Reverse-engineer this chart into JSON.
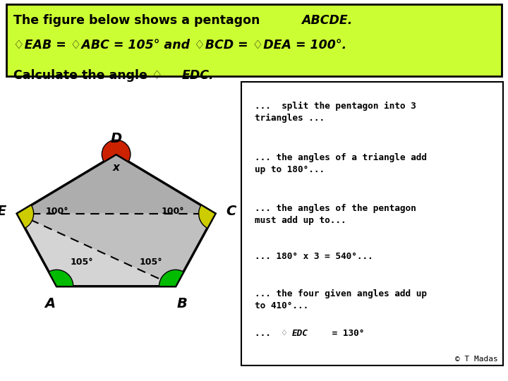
{
  "header_bg": "#CCFF33",
  "pentagon_fill_light": "#D0D0D0",
  "pentagon_fill_mid": "#B8B8B8",
  "pentagon_fill_dark": "#A8A8A8",
  "angle_D_color": "#CC2200",
  "angle_E_color": "#CCCC00",
  "angle_C_color": "#CCCC00",
  "angle_A_color": "#00BB00",
  "angle_B_color": "#00BB00",
  "copyright": "© T Madas",
  "A": [
    1.8,
    1.5
  ],
  "B": [
    7.2,
    1.5
  ],
  "C": [
    9.0,
    4.8
  ],
  "D": [
    4.5,
    7.5
  ],
  "E": [
    0.0,
    4.8
  ],
  "header_lines": [
    [
      "The figure below shows a pentagon ",
      false,
      "ABCDE.",
      true
    ],
    [
      "♢EAB = ♢ABC = 105° and ♢BCD = ♢DEA = 100°.",
      true,
      "",
      false
    ],
    [
      "Calculate the angle ♢",
      false,
      "EDC.",
      true
    ]
  ],
  "right_lines": [
    [
      "...  split the pentagon into 3",
      "triangles ..."
    ],
    [
      "... the angles of a triangle add",
      "up to 180°..."
    ],
    [
      "... the angles of the pentagon",
      "must add up to..."
    ],
    [
      "... 180° x 3 = 540°...",
      ""
    ],
    [
      "... the four given angles add up",
      "to 410°..."
    ],
    [
      "... ♢EDC = 130°",
      ""
    ]
  ]
}
